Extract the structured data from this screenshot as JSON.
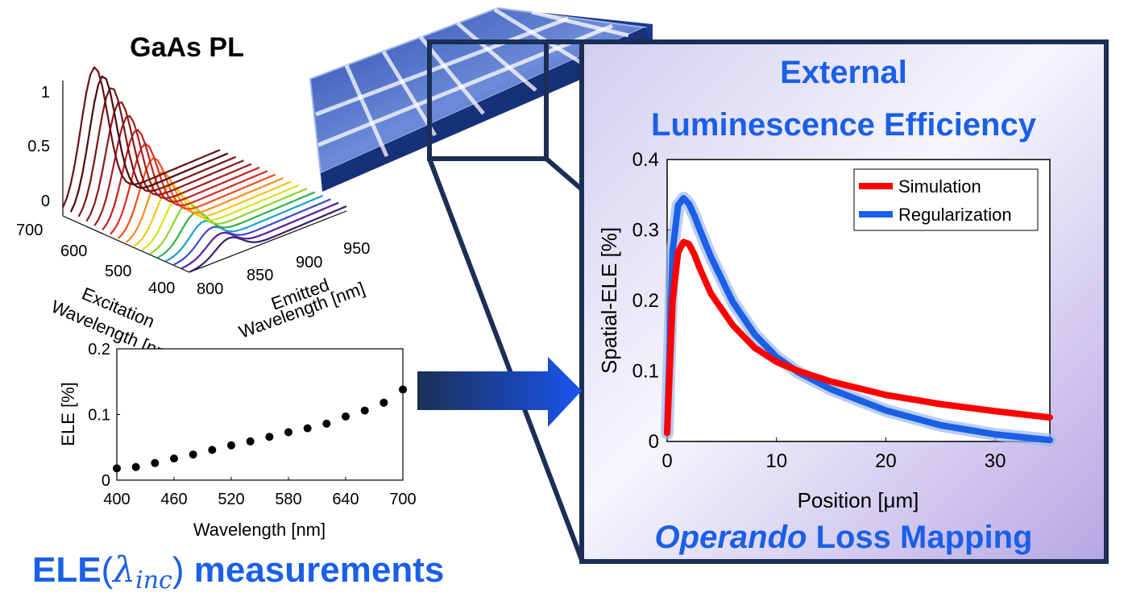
{
  "pl_panel": {
    "title": "GaAs PL",
    "z_ticks": [
      "0",
      "0.5",
      "1"
    ],
    "excitation_ticks": [
      "400",
      "500",
      "600",
      "700"
    ],
    "emitted_ticks": [
      "800",
      "850",
      "900",
      "950"
    ],
    "excitation_label_1": "Excitation",
    "excitation_label_2": "Wavelength [nm]",
    "emitted_label_1": "Emitted",
    "emitted_label_2": "Wavelength [nm]"
  },
  "ele_panel": {
    "heading_text": "ELE",
    "heading_lambda": "λ",
    "heading_sub": "inc",
    "heading_suffix": "measurements"
  },
  "main_panel": {
    "title_line1": "External",
    "title_line2": "Luminescence Efficiency",
    "footer_italic": "Operando",
    "footer_rest": " Loss Mapping"
  },
  "chart_data": [
    {
      "type": "scatter",
      "xlabel": "Wavelength [nm]",
      "ylabel": "ELE [%]",
      "xlim": [
        400,
        700
      ],
      "ylim": [
        0,
        0.2
      ],
      "xticks": [
        400,
        460,
        520,
        580,
        640,
        700
      ],
      "yticks": [
        0,
        0.1,
        0.2
      ],
      "ytick_labels": [
        "0",
        "0.1",
        "0.2"
      ],
      "x": [
        400,
        420,
        440,
        460,
        480,
        500,
        520,
        540,
        560,
        580,
        600,
        620,
        640,
        660,
        680,
        700
      ],
      "y": [
        0.018,
        0.02,
        0.026,
        0.033,
        0.039,
        0.046,
        0.053,
        0.059,
        0.066,
        0.073,
        0.079,
        0.086,
        0.097,
        0.106,
        0.118,
        0.138
      ]
    },
    {
      "type": "line",
      "xlabel": "Position [μm]",
      "ylabel": "Spatial-ELE [%]",
      "xlim": [
        0,
        35
      ],
      "ylim": [
        0,
        0.4
      ],
      "xticks": [
        0,
        10,
        20,
        30
      ],
      "yticks": [
        0,
        0.1,
        0.2,
        0.3,
        0.4
      ],
      "ytick_labels": [
        "0",
        "0.1",
        "0.2",
        "0.3",
        "0.4"
      ],
      "legend_position": "top-right",
      "series": [
        {
          "name": "Simulation",
          "color": "#ff0000",
          "x": [
            0,
            0.5,
            1,
            1.5,
            2,
            2.5,
            3,
            4,
            6,
            8,
            10,
            12,
            15,
            20,
            25,
            30,
            35
          ],
          "y": [
            0.012,
            0.2,
            0.268,
            0.283,
            0.28,
            0.265,
            0.245,
            0.21,
            0.165,
            0.133,
            0.113,
            0.1,
            0.085,
            0.066,
            0.053,
            0.043,
            0.034
          ]
        },
        {
          "name": "Regularization",
          "color": "#1a5fe6",
          "x": [
            0,
            0.5,
            1,
            1.5,
            2,
            2.5,
            3,
            4,
            6,
            8,
            10,
            12,
            15,
            20,
            25,
            30,
            35
          ],
          "y": [
            0.012,
            0.27,
            0.335,
            0.345,
            0.337,
            0.32,
            0.3,
            0.262,
            0.198,
            0.152,
            0.12,
            0.098,
            0.074,
            0.044,
            0.023,
            0.01,
            0.002
          ]
        }
      ]
    }
  ]
}
